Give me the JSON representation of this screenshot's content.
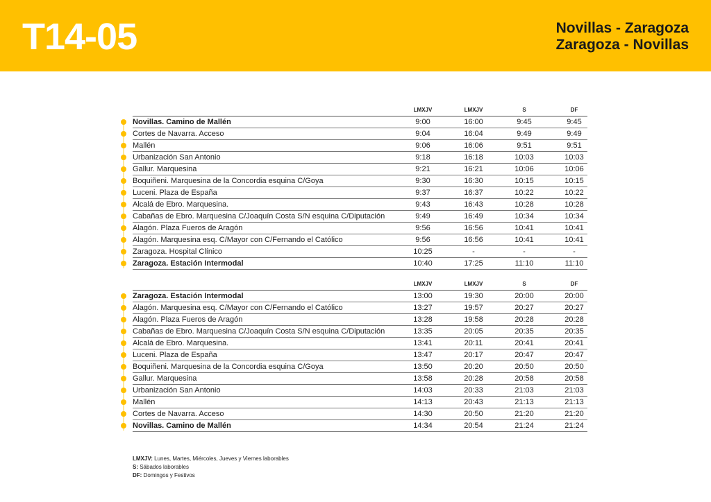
{
  "header": {
    "code": "T14-05",
    "route_outbound": "Novillas - Zaragoza",
    "route_return": "Zaragoza - Novillas",
    "color": "#FFC000"
  },
  "columns": [
    "LMXJV",
    "LMXJV",
    "S",
    "DF"
  ],
  "outbound": [
    {
      "stop": "Novillas. Camino de Mallén",
      "bold": true,
      "times": [
        "9:00",
        "16:00",
        "9:45",
        "9:45"
      ]
    },
    {
      "stop": "Cortes de Navarra. Acceso",
      "times": [
        "9:04",
        "16:04",
        "9:49",
        "9:49"
      ]
    },
    {
      "stop": "Mallén",
      "times": [
        "9:06",
        "16:06",
        "9:51",
        "9:51"
      ]
    },
    {
      "stop": "Urbanización San Antonio",
      "times": [
        "9:18",
        "16:18",
        "10:03",
        "10:03"
      ]
    },
    {
      "stop": "Gallur. Marquesina",
      "times": [
        "9:21",
        "16:21",
        "10:06",
        "10:06"
      ]
    },
    {
      "stop": "Boquiñeni. Marquesina de la Concordia esquina C/Goya",
      "times": [
        "9:30",
        "16:30",
        "10:15",
        "10:15"
      ]
    },
    {
      "stop": "Luceni. Plaza de España",
      "times": [
        "9:37",
        "16:37",
        "10:22",
        "10:22"
      ]
    },
    {
      "stop": "Alcalá de Ebro. Marquesina.",
      "times": [
        "9:43",
        "16:43",
        "10:28",
        "10:28"
      ]
    },
    {
      "stop": "Cabañas de Ebro. Marquesina C/Joaquín Costa S/N esquina C/Diputación",
      "times": [
        "9:49",
        "16:49",
        "10:34",
        "10:34"
      ]
    },
    {
      "stop": "Alagón. Plaza Fueros de Aragón",
      "times": [
        "9:56",
        "16:56",
        "10:41",
        "10:41"
      ]
    },
    {
      "stop": "Alagón. Marquesina esq. C/Mayor con C/Fernando el Católico",
      "times": [
        "9:56",
        "16:56",
        "10:41",
        "10:41"
      ]
    },
    {
      "stop": "Zaragoza. Hospital Clínico",
      "times": [
        "10:25",
        "-",
        "-",
        "-"
      ]
    },
    {
      "stop": "Zaragoza. Estación Intermodal",
      "bold": true,
      "times": [
        "10:40",
        "17:25",
        "11:10",
        "11:10"
      ]
    }
  ],
  "return": [
    {
      "stop": "Zaragoza. Estación Intermodal",
      "bold": true,
      "times": [
        "13:00",
        "19:30",
        "20:00",
        "20:00"
      ]
    },
    {
      "stop": "Alagón. Marquesina esq. C/Mayor con C/Fernando el Católico",
      "times": [
        "13:27",
        "19:57",
        "20:27",
        "20:27"
      ]
    },
    {
      "stop": "Alagón. Plaza Fueros de Aragón",
      "times": [
        "13:28",
        "19:58",
        "20:28",
        "20:28"
      ]
    },
    {
      "stop": "Cabañas de Ebro. Marquesina C/Joaquín Costa S/N esquina C/Diputación",
      "times": [
        "13:35",
        "20:05",
        "20:35",
        "20:35"
      ]
    },
    {
      "stop": "Alcalá de Ebro. Marquesina.",
      "times": [
        "13:41",
        "20:11",
        "20:41",
        "20:41"
      ]
    },
    {
      "stop": "Luceni. Plaza de España",
      "times": [
        "13:47",
        "20:17",
        "20:47",
        "20:47"
      ]
    },
    {
      "stop": "Boquiñeni. Marquesina de la Concordia esquina C/Goya",
      "times": [
        "13:50",
        "20:20",
        "20:50",
        "20:50"
      ]
    },
    {
      "stop": "Gallur. Marquesina",
      "times": [
        "13:58",
        "20:28",
        "20:58",
        "20:58"
      ]
    },
    {
      "stop": "Urbanización San Antonio",
      "times": [
        "14:03",
        "20:33",
        "21:03",
        "21:03"
      ]
    },
    {
      "stop": "Mallén",
      "times": [
        "14:13",
        "20:43",
        "21:13",
        "21:13"
      ]
    },
    {
      "stop": "Cortes de Navarra. Acceso",
      "times": [
        "14:30",
        "20:50",
        "21:20",
        "21:20"
      ]
    },
    {
      "stop": "Novillas. Camino de Mallén",
      "bold": true,
      "times": [
        "14:34",
        "20:54",
        "21:24",
        "21:24"
      ]
    }
  ],
  "legend": [
    {
      "key": "LMXJV:",
      "text": " Lunes, Martes, Miércoles, Jueves y Viernes laborables"
    },
    {
      "key": "S:",
      "text": " Sábados laborables"
    },
    {
      "key": "DF:",
      "text": " Domingos y Festivos"
    }
  ]
}
